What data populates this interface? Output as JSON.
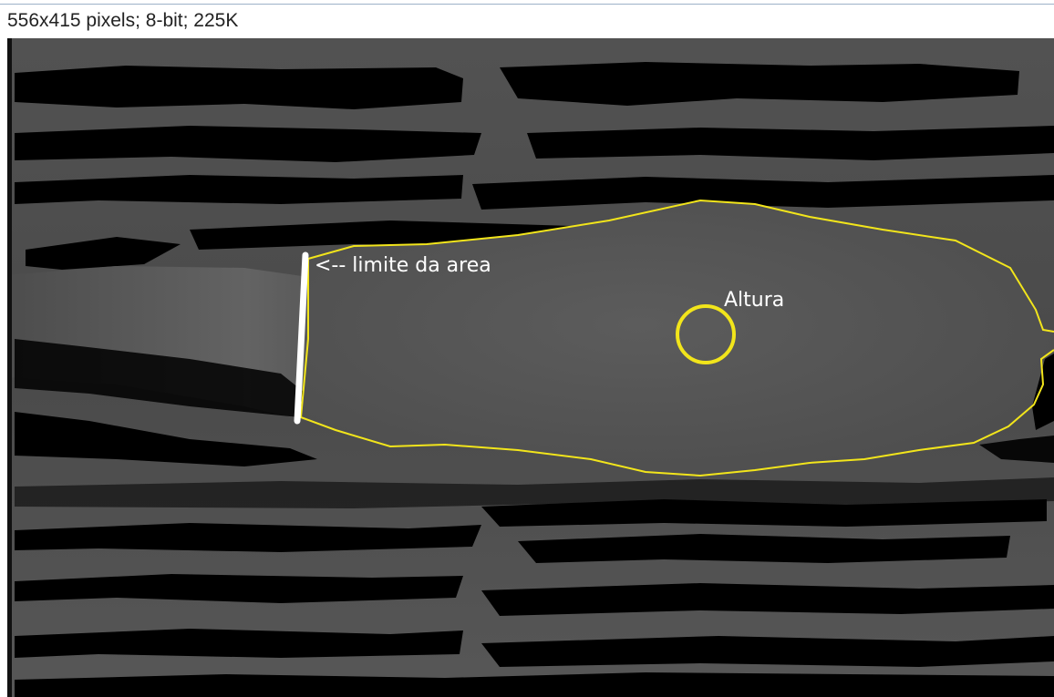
{
  "image_window": {
    "info_text": "556x415 pixels; 8-bit; 225K",
    "image_content": "thermal-depth-map-icon"
  },
  "annotations": {
    "limit_label": "<-- limite da area",
    "height_label": "Altura"
  },
  "colors": {
    "background_gray": "#555555",
    "outline_yellow": "#f2e51b",
    "limit_line": "#ffffff",
    "shadow_black": "#000000"
  }
}
